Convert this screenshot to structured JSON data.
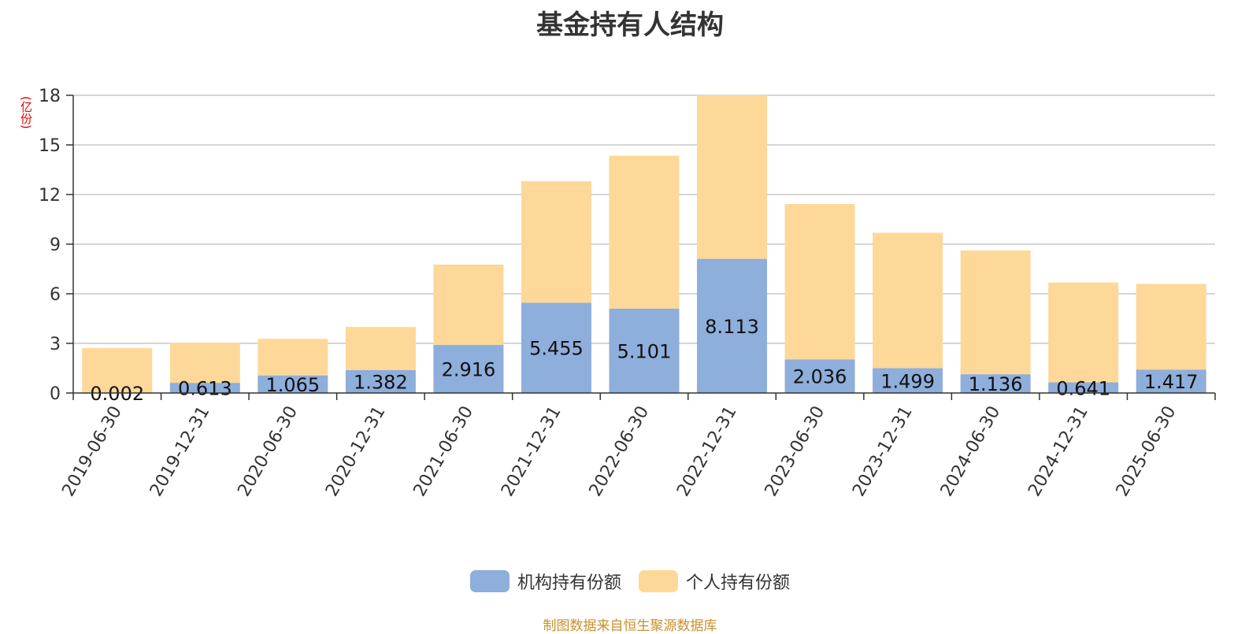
{
  "chart_data": {
    "type": "bar",
    "stacked": true,
    "title": "基金持有人结构",
    "unit": "(亿份)",
    "categories": [
      "2019-06-30",
      "2019-12-31",
      "2020-06-30",
      "2020-12-31",
      "2021-06-30",
      "2021-12-31",
      "2022-06-30",
      "2022-12-31",
      "2023-06-30",
      "2023-12-31",
      "2024-06-30",
      "2024-12-31",
      "2025-06-30"
    ],
    "series": [
      {
        "name": "机构持有份额",
        "color": "#8eaedb",
        "values": [
          0.002,
          0.613,
          1.065,
          1.382,
          2.916,
          5.455,
          5.101,
          8.113,
          2.036,
          1.499,
          1.136,
          0.641,
          1.417
        ],
        "labels": [
          "0.002",
          "0.613",
          "1.065",
          "1.382",
          "2.916",
          "5.455",
          "5.101",
          "8.113",
          "2.036",
          "1.499",
          "1.136",
          "0.641",
          "1.417"
        ]
      },
      {
        "name": "个人持有份额",
        "color": "#fed898",
        "values": [
          2.72,
          2.42,
          2.21,
          2.61,
          4.85,
          7.35,
          9.25,
          9.9,
          9.39,
          8.19,
          7.48,
          6.04,
          5.18
        ]
      }
    ],
    "ylim": [
      0,
      18
    ],
    "yticks": [
      0,
      3,
      6,
      9,
      12,
      15,
      18
    ],
    "grid": true,
    "legend_position": "bottom-center",
    "source": "制图数据来自恒生聚源数据库"
  }
}
